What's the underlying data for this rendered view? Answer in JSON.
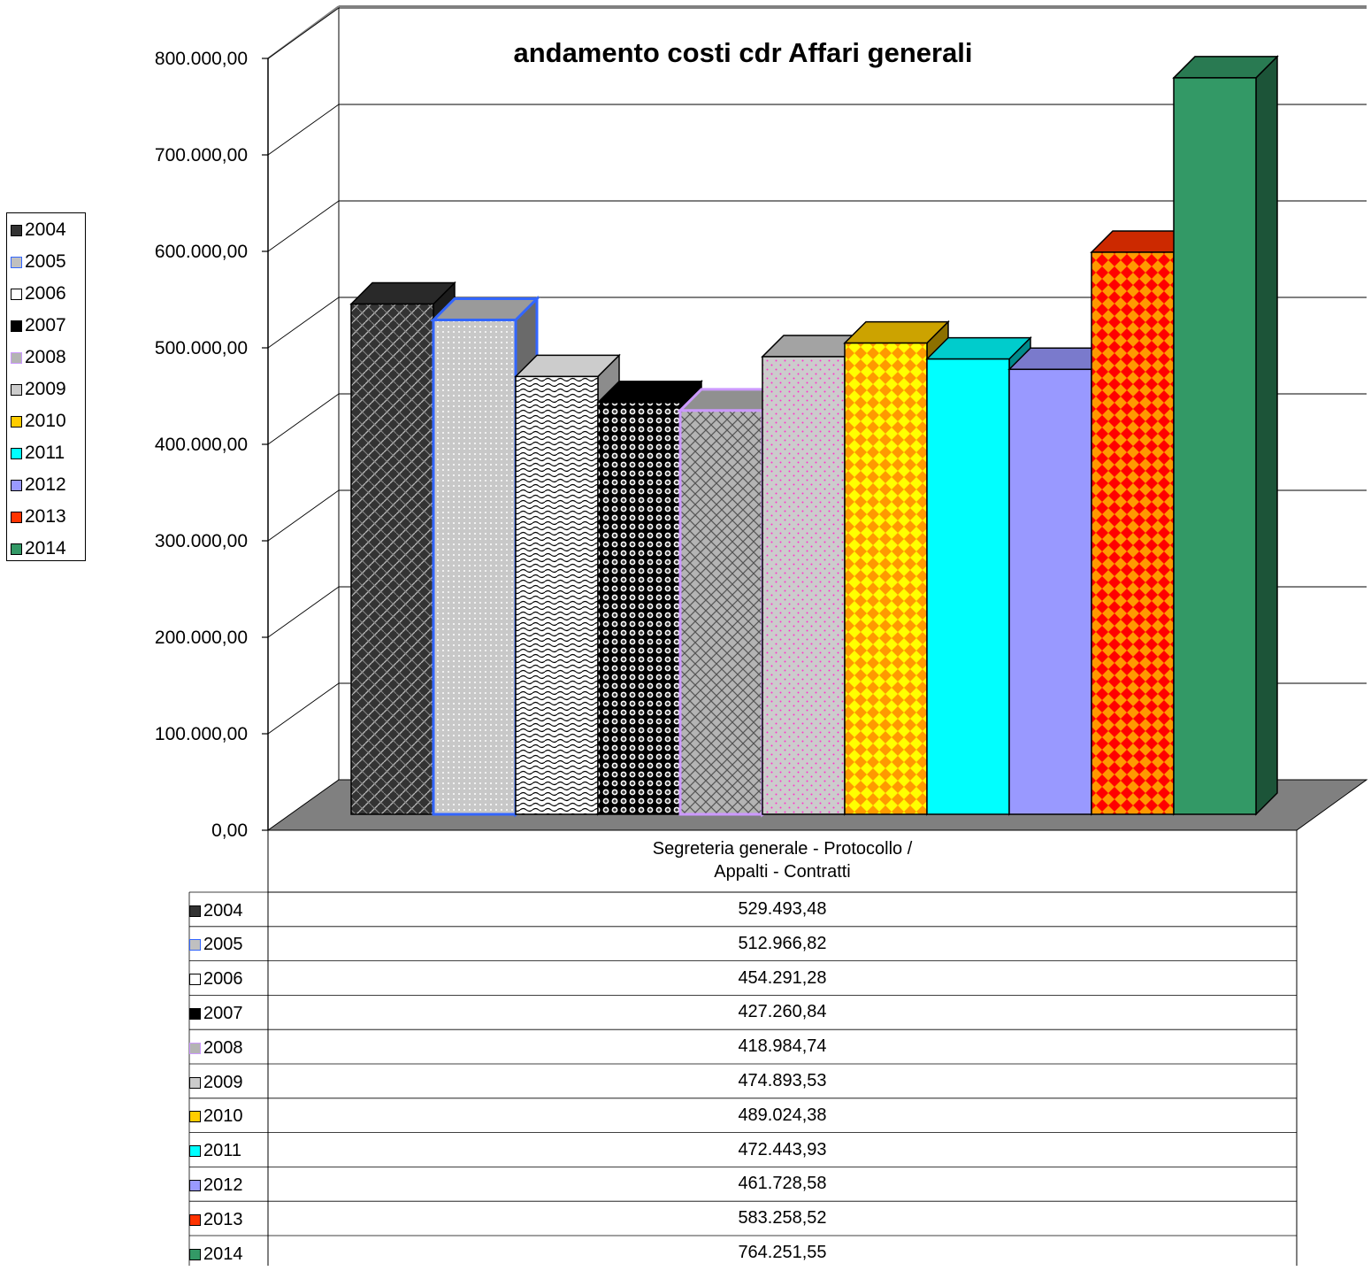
{
  "chart_data": {
    "type": "bar",
    "title": "andamento costi cdr Affari generali",
    "categories": [
      "Segreteria generale - Protocollo / Appalti - Contratti"
    ],
    "category_lines": [
      "Segreteria generale - Protocollo /",
      "Appalti - Contratti"
    ],
    "ylim": [
      0,
      800000
    ],
    "yticks": [
      "0,00",
      "100.000,00",
      "200.000,00",
      "300.000,00",
      "400.000,00",
      "500.000,00",
      "600.000,00",
      "700.000,00",
      "800.000,00"
    ],
    "grid": true,
    "legend_position": "left",
    "three_d": true,
    "series": [
      {
        "name": "2004",
        "value": 529493.48,
        "label": "529.493,48",
        "color": "#333333",
        "pattern": "weave-dark"
      },
      {
        "name": "2005",
        "value": 512966.82,
        "label": "512.966,82",
        "color": "#c0c0c0",
        "pattern": "dots-light",
        "border": "#3366ff"
      },
      {
        "name": "2006",
        "value": 454291.28,
        "label": "454.291,28",
        "color": "#ffffff",
        "pattern": "waves"
      },
      {
        "name": "2007",
        "value": 427260.84,
        "label": "427.260,84",
        "color": "#000000",
        "pattern": "spheres"
      },
      {
        "name": "2008",
        "value": 418984.74,
        "label": "418.984,74",
        "color": "#b4b4b4",
        "pattern": "lattice",
        "border": "#cc99ff"
      },
      {
        "name": "2009",
        "value": 474893.53,
        "label": "474.893,53",
        "color": "#cccccc",
        "pattern": "pink-dots"
      },
      {
        "name": "2010",
        "value": 489024.38,
        "label": "489.024,38",
        "color": "#ffcc00",
        "pattern": "diamonds-orange"
      },
      {
        "name": "2011",
        "value": 472443.93,
        "label": "472.443,93",
        "color": "#00ffff",
        "pattern": "solid"
      },
      {
        "name": "2012",
        "value": 461728.58,
        "label": "461.728,58",
        "color": "#9999ff",
        "pattern": "solid"
      },
      {
        "name": "2013",
        "value": 583258.52,
        "label": "583.258,52",
        "color": "#ff3300",
        "pattern": "diamonds-red"
      },
      {
        "name": "2014",
        "value": 764251.55,
        "label": "764.251,55",
        "color": "#339966",
        "pattern": "solid"
      }
    ]
  }
}
